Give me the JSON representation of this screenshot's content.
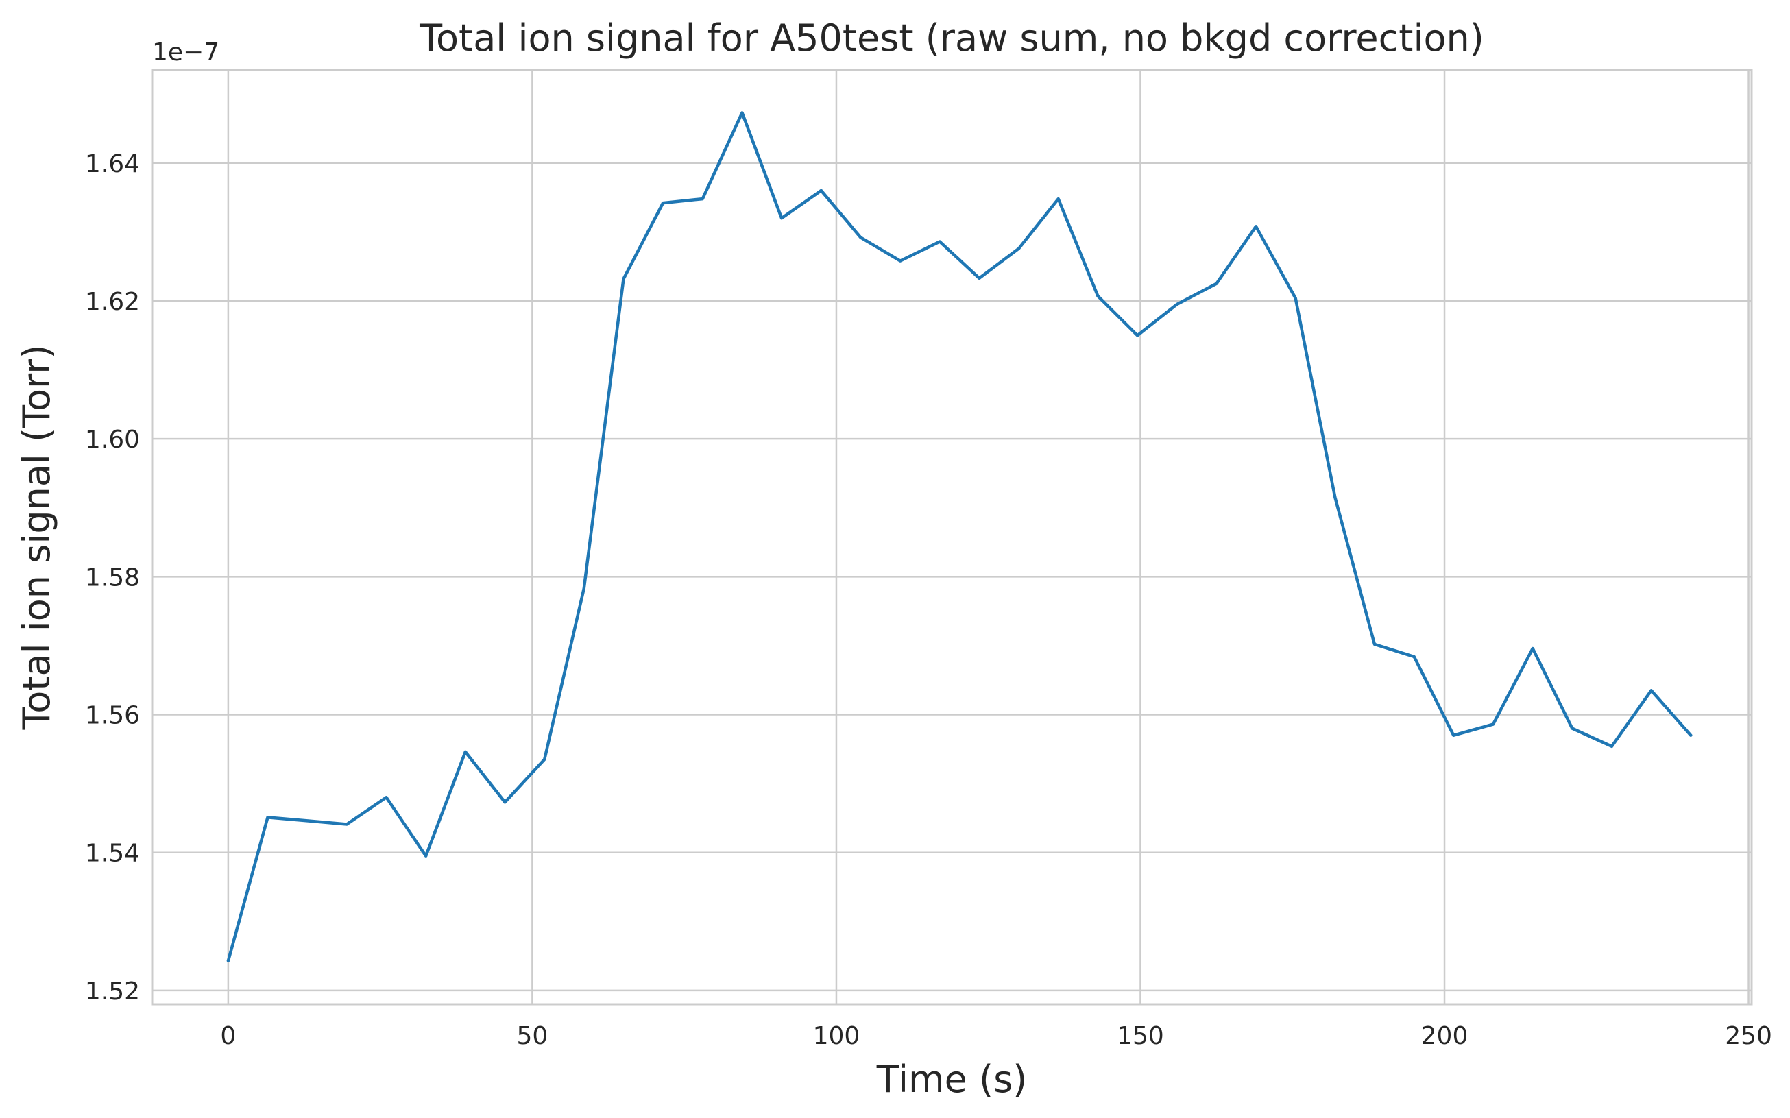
{
  "chart_data": {
    "type": "line",
    "title": "Total ion signal for A50test (raw sum, no bkgd correction)",
    "xlabel": "Time (s)",
    "ylabel": "Total ion signal (Torr)",
    "y_offset_label": "1e−7",
    "xlim": [
      -12.5,
      250.5
    ],
    "ylim": [
      1.518,
      1.6535
    ],
    "x_ticks": [
      0,
      50,
      100,
      150,
      200,
      250
    ],
    "x_tick_labels": [
      "0",
      "50",
      "100",
      "150",
      "200",
      "250"
    ],
    "y_ticks": [
      1.52,
      1.54,
      1.56,
      1.58,
      1.6,
      1.62,
      1.64
    ],
    "y_tick_labels": [
      "1.52",
      "1.54",
      "1.56",
      "1.58",
      "1.60",
      "1.62",
      "1.64"
    ],
    "grid": true,
    "series": [
      {
        "color": "#1f77b4",
        "x": [
          0,
          6.5,
          13,
          19.5,
          26,
          32.5,
          39,
          45.5,
          52,
          58.5,
          65,
          71.5,
          78,
          84.5,
          91,
          97.5,
          104,
          110.5,
          117,
          123.5,
          130,
          136.5,
          143,
          149.5,
          156,
          162.5,
          169,
          175.5,
          182,
          188.5,
          195,
          201.5,
          208,
          214.5,
          221,
          227.5,
          234,
          240.5
        ],
        "y": [
          1.5243,
          1.5451,
          1.5446,
          1.5441,
          1.548,
          1.5395,
          1.5546,
          1.5473,
          1.5535,
          1.5783,
          1.6232,
          1.6342,
          1.6348,
          1.6473,
          1.632,
          1.636,
          1.6292,
          1.6258,
          1.6286,
          1.6233,
          1.6276,
          1.6348,
          1.6207,
          1.615,
          1.6195,
          1.6225,
          1.6308,
          1.6204,
          1.5915,
          1.5702,
          1.5684,
          1.557,
          1.5586,
          1.5696,
          1.558,
          1.5554,
          1.5635,
          1.557
        ]
      }
    ]
  }
}
